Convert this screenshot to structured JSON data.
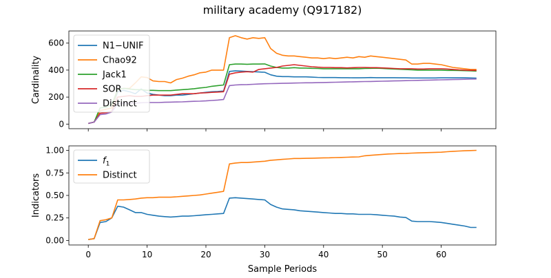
{
  "figure": {
    "title": "military academy (Q917182)",
    "xlabel": "Sample Periods"
  },
  "chart_data": [
    {
      "type": "line",
      "ylabel": "Cardinality",
      "xlim": [
        -3.3,
        69.3
      ],
      "ylim": [
        -34,
        690
      ],
      "xticks": [
        0,
        10,
        20,
        30,
        40,
        50,
        60
      ],
      "yticks": [
        0,
        200,
        400,
        600
      ],
      "legend": "top-left",
      "grid": false,
      "series": [
        {
          "name": "N1−UNIF",
          "color": "#1f77b4",
          "values": [
            5,
            15,
            100,
            110,
            120,
            240,
            250,
            240,
            225,
            260,
            230,
            220,
            215,
            210,
            210,
            215,
            215,
            220,
            225,
            230,
            235,
            240,
            242,
            245,
            390,
            395,
            393,
            390,
            388,
            386,
            384,
            365,
            355,
            352,
            352,
            350,
            350,
            350,
            348,
            346,
            345,
            345,
            345,
            344,
            344,
            343,
            343,
            344,
            345,
            344,
            344,
            344,
            344,
            343,
            343,
            342,
            342,
            342,
            342,
            342,
            343,
            343,
            343,
            343,
            343,
            342,
            341
          ]
        },
        {
          "name": "Chao92",
          "color": "#ff7f0e",
          "values": [
            5,
            15,
            100,
            110,
            120,
            255,
            265,
            265,
            305,
            350,
            345,
            320,
            315,
            315,
            305,
            330,
            340,
            355,
            365,
            380,
            385,
            400,
            400,
            400,
            640,
            655,
            640,
            630,
            640,
            635,
            640,
            560,
            525,
            510,
            505,
            505,
            500,
            495,
            490,
            490,
            485,
            490,
            485,
            490,
            495,
            490,
            500,
            495,
            505,
            500,
            495,
            490,
            485,
            480,
            475,
            445,
            445,
            450,
            450,
            445,
            440,
            430,
            420,
            415,
            410,
            405,
            405
          ]
        },
        {
          "name": "Jack1",
          "color": "#2ca02c",
          "values": [
            5,
            15,
            120,
            125,
            145,
            255,
            265,
            260,
            255,
            255,
            250,
            250,
            248,
            248,
            248,
            252,
            255,
            258,
            262,
            268,
            272,
            280,
            285,
            290,
            440,
            445,
            445,
            443,
            445,
            445,
            446,
            430,
            420,
            415,
            415,
            418,
            415,
            415,
            413,
            412,
            410,
            410,
            410,
            410,
            410,
            410,
            410,
            412,
            413,
            414,
            412,
            410,
            408,
            406,
            404,
            402,
            400,
            400,
            400,
            400,
            400,
            398,
            398,
            397,
            396,
            395,
            393
          ]
        },
        {
          "name": "SOR",
          "color": "#d62728",
          "values": [
            5,
            15,
            80,
            85,
            95,
            200,
            205,
            210,
            205,
            205,
            210,
            215,
            215,
            215,
            215,
            220,
            225,
            225,
            225,
            230,
            232,
            235,
            237,
            240,
            370,
            380,
            385,
            388,
            385,
            405,
            410,
            415,
            420,
            430,
            435,
            440,
            435,
            430,
            425,
            422,
            420,
            420,
            418,
            418,
            416,
            418,
            420,
            420,
            418,
            418,
            416,
            414,
            412,
            410,
            410,
            410,
            408,
            408,
            410,
            410,
            410,
            408,
            405,
            402,
            400,
            398,
            398
          ]
        },
        {
          "name": "Distinct",
          "color": "#9467bd",
          "values": [
            5,
            15,
            70,
            75,
            90,
            150,
            155,
            155,
            155,
            158,
            160,
            160,
            160,
            162,
            163,
            164,
            165,
            167,
            169,
            170,
            172,
            175,
            178,
            182,
            285,
            290,
            292,
            293,
            295,
            297,
            299,
            300,
            301,
            302,
            303,
            304,
            305,
            306,
            306,
            307,
            308,
            309,
            310,
            311,
            312,
            313,
            314,
            315,
            316,
            317,
            318,
            319,
            320,
            321,
            322,
            323,
            324,
            325,
            326,
            327,
            328,
            329,
            330,
            331,
            332,
            333,
            334
          ]
        }
      ]
    },
    {
      "type": "line",
      "ylabel": "Indicators",
      "xlim": [
        -3.3,
        69.3
      ],
      "ylim": [
        -0.05,
        1.05
      ],
      "xticks": [
        0,
        10,
        20,
        30,
        40,
        50,
        60
      ],
      "yticks": [
        "0.00",
        "0.25",
        "0.50",
        "0.75",
        "1.00"
      ],
      "legend": "top-left",
      "grid": false,
      "series": [
        {
          "name": "f1",
          "color": "#1f77b4",
          "values": [
            0.01,
            0.02,
            0.2,
            0.21,
            0.25,
            0.38,
            0.37,
            0.34,
            0.31,
            0.31,
            0.29,
            0.28,
            0.27,
            0.265,
            0.26,
            0.265,
            0.27,
            0.27,
            0.275,
            0.28,
            0.285,
            0.29,
            0.295,
            0.3,
            0.47,
            0.475,
            0.47,
            0.465,
            0.46,
            0.455,
            0.45,
            0.4,
            0.37,
            0.35,
            0.345,
            0.34,
            0.33,
            0.325,
            0.32,
            0.315,
            0.31,
            0.305,
            0.3,
            0.3,
            0.295,
            0.295,
            0.29,
            0.29,
            0.29,
            0.285,
            0.28,
            0.275,
            0.27,
            0.26,
            0.255,
            0.215,
            0.21,
            0.21,
            0.21,
            0.205,
            0.2,
            0.19,
            0.18,
            0.17,
            0.16,
            0.145,
            0.145
          ]
        },
        {
          "name": "Distinct",
          "color": "#ff7f0e",
          "values": [
            0.01,
            0.02,
            0.22,
            0.23,
            0.25,
            0.45,
            0.45,
            0.455,
            0.46,
            0.47,
            0.475,
            0.475,
            0.48,
            0.48,
            0.48,
            0.485,
            0.49,
            0.495,
            0.5,
            0.505,
            0.515,
            0.525,
            0.535,
            0.545,
            0.85,
            0.86,
            0.865,
            0.865,
            0.87,
            0.875,
            0.88,
            0.89,
            0.895,
            0.9,
            0.905,
            0.91,
            0.91,
            0.912,
            0.913,
            0.915,
            0.917,
            0.918,
            0.92,
            0.922,
            0.924,
            0.926,
            0.928,
            0.94,
            0.945,
            0.95,
            0.955,
            0.96,
            0.962,
            0.965,
            0.967,
            0.97,
            0.972,
            0.974,
            0.976,
            0.978,
            0.98,
            0.985,
            0.99,
            0.993,
            0.996,
            0.998,
            1.0
          ]
        }
      ]
    }
  ]
}
